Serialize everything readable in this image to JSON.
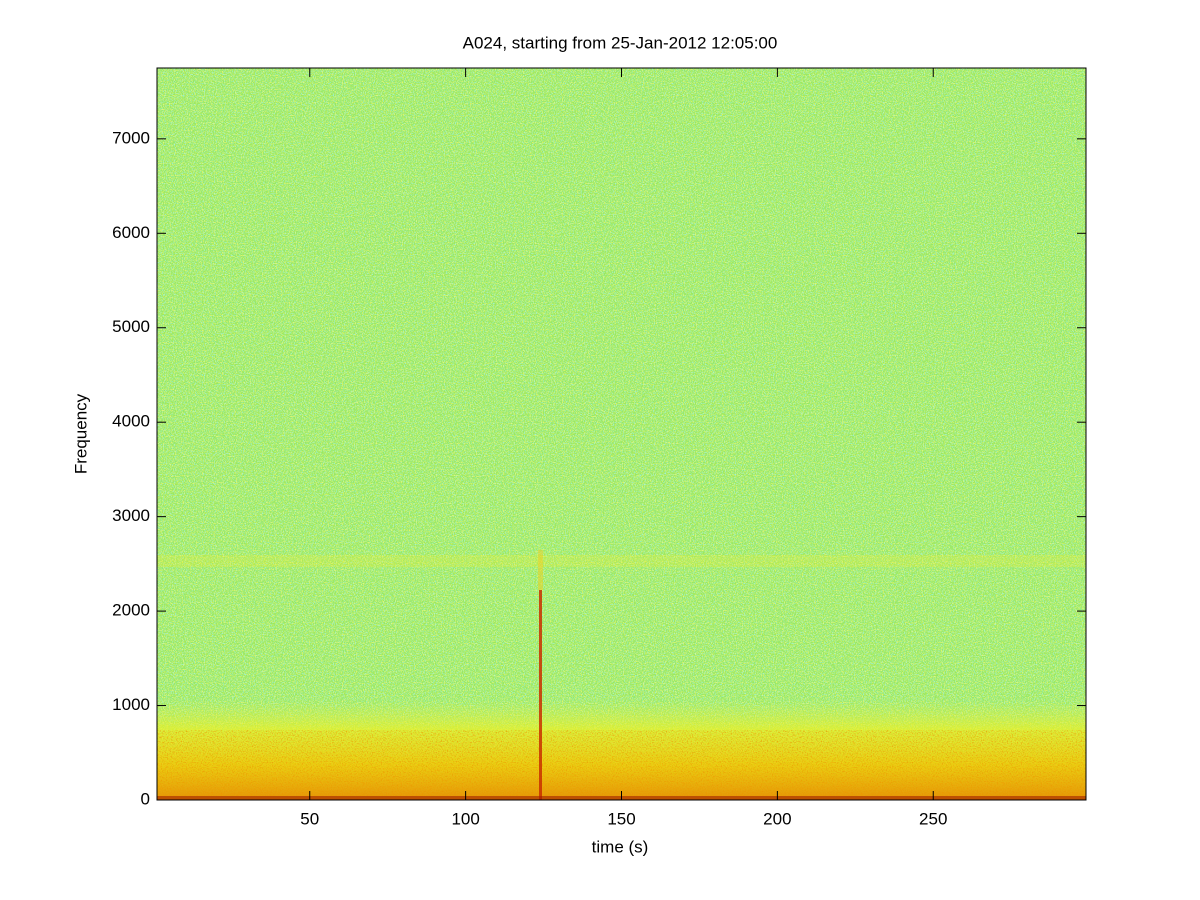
{
  "chart_data": {
    "type": "spectrogram",
    "title": "A024, starting from 25-Jan-2012 12:05:00",
    "xlabel": "time (s)",
    "ylabel": "Frequency",
    "xlim": [
      1,
      299
    ],
    "xticks": [
      50,
      100,
      150,
      200,
      250
    ],
    "ylim": [
      0,
      7750
    ],
    "yticks": [
      0,
      1000,
      2000,
      3000,
      4000,
      5000,
      6000,
      7000
    ],
    "colormap": "jet"
  }
}
